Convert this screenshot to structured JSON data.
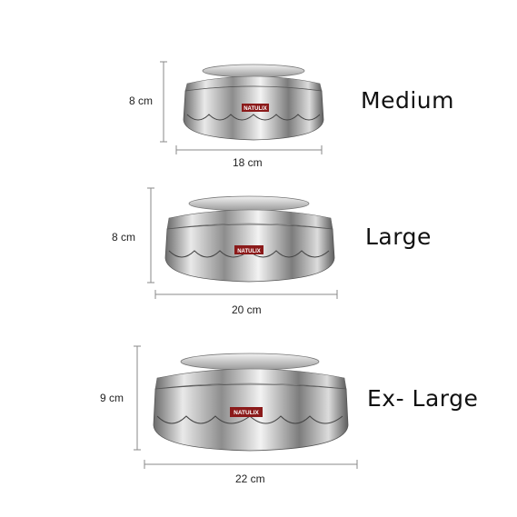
{
  "brand": "NATULIX",
  "products": [
    {
      "size": "Medium",
      "height": "8 cm",
      "width": "18 cm"
    },
    {
      "size": "Large",
      "height": "8 cm",
      "width": "20 cm"
    },
    {
      "size": "Ex- Large",
      "height": "9 cm",
      "width": "22 cm"
    }
  ]
}
